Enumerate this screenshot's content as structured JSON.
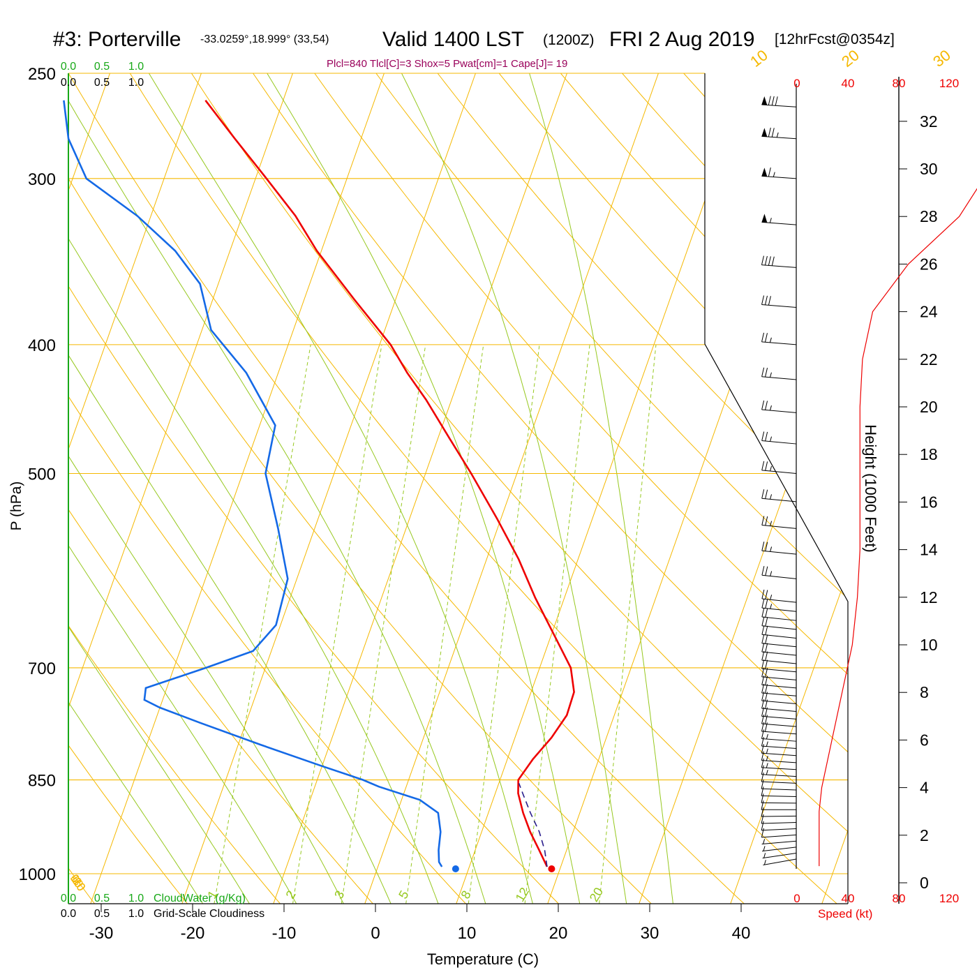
{
  "header": {
    "station": "#3: Porterville",
    "coords": "-33.0259°,18.999° (33,54)",
    "valid": "Valid 1400 LST",
    "zulu": "(1200Z)",
    "date": "FRI 2 Aug 2019",
    "forecast": "[12hrFcst@0354z]"
  },
  "params_line": "Plcl=840 Tlcl[C]=3 Shox=5 Pwat[cm]=1 Cape[J]= 19",
  "colors": {
    "isotherm": "#f5b800",
    "dry_adiabat": "#f5b800",
    "moist_adiabat": "#96c81e",
    "mixing_ratio": "#96c81e",
    "temperature": "#ee0000",
    "dewpoint": "#1469e6",
    "parcel": "#2a1e8c",
    "cloud_axis": "#17a817",
    "params": "#99005a",
    "speed": "#ee0000"
  },
  "cloud": {
    "cw_ticks": [
      "0.0",
      "0.5",
      "1.0"
    ],
    "gs_ticks": [
      "0.0",
      "0.5",
      "1.0"
    ],
    "cw_label": "CloudWater (g/Kg)",
    "gs_label": "Grid-Scale Cloudiness"
  },
  "labels": {
    "ylabel": "P (hPa)",
    "xlabel": "Temperature (C)",
    "height_label": "Height (1000 Feet)",
    "speed_label": "Speed (kt)",
    "dry_adiabat_ticks": [
      "10",
      "0",
      "-10",
      "-20",
      "-30"
    ],
    "isotherm_right_ticks": [
      "0",
      "10",
      "20",
      "30"
    ]
  },
  "chart_data": {
    "type": "skew-t",
    "pressure_levels": [
      250,
      300,
      400,
      500,
      700,
      850,
      1000
    ],
    "x_ticks": [
      -30,
      -20,
      -10,
      0,
      10,
      20,
      30,
      40
    ],
    "height_ticks_kft": [
      0,
      2,
      4,
      6,
      8,
      10,
      12,
      14,
      16,
      18,
      20,
      22,
      24,
      26,
      28,
      30,
      32
    ],
    "speed_ticks": [
      0,
      40,
      80,
      120
    ],
    "mixing_ratio_labels": [
      "1",
      "2",
      "3",
      "5",
      "8",
      "12",
      "20"
    ],
    "temperature_profile": [
      {
        "p": 988,
        "t": 18.5
      },
      {
        "p": 960,
        "t": 17.0
      },
      {
        "p": 930,
        "t": 15.3
      },
      {
        "p": 900,
        "t": 13.8
      },
      {
        "p": 870,
        "t": 12.5
      },
      {
        "p": 850,
        "t": 12.0
      },
      {
        "p": 820,
        "t": 12.8
      },
      {
        "p": 790,
        "t": 14.0
      },
      {
        "p": 760,
        "t": 14.8
      },
      {
        "p": 730,
        "t": 14.7
      },
      {
        "p": 700,
        "t": 13.4
      },
      {
        "p": 660,
        "t": 10.2
      },
      {
        "p": 620,
        "t": 6.8
      },
      {
        "p": 580,
        "t": 3.5
      },
      {
        "p": 540,
        "t": -0.5
      },
      {
        "p": 500,
        "t": -5.0
      },
      {
        "p": 470,
        "t": -8.8
      },
      {
        "p": 440,
        "t": -12.8
      },
      {
        "p": 420,
        "t": -15.9
      },
      {
        "p": 400,
        "t": -18.8
      },
      {
        "p": 370,
        "t": -24.5
      },
      {
        "p": 340,
        "t": -30.5
      },
      {
        "p": 320,
        "t": -34.2
      },
      {
        "p": 300,
        "t": -38.8
      },
      {
        "p": 280,
        "t": -43.8
      },
      {
        "p": 262,
        "t": -48.5
      }
    ],
    "dewpoint_profile": [
      {
        "p": 988,
        "td": 7.0
      },
      {
        "p": 980,
        "td": 6.5
      },
      {
        "p": 960,
        "td": 6.0
      },
      {
        "p": 930,
        "td": 5.5
      },
      {
        "p": 900,
        "td": 4.5
      },
      {
        "p": 880,
        "td": 2.0
      },
      {
        "p": 860,
        "td": -3.0
      },
      {
        "p": 850,
        "td": -5.0
      },
      {
        "p": 830,
        "td": -10.0
      },
      {
        "p": 800,
        "td": -17.5
      },
      {
        "p": 770,
        "td": -25.0
      },
      {
        "p": 750,
        "td": -30.0
      },
      {
        "p": 740,
        "td": -32.0
      },
      {
        "p": 725,
        "td": -32.3
      },
      {
        "p": 700,
        "td": -26.5
      },
      {
        "p": 680,
        "td": -22.0
      },
      {
        "p": 650,
        "td": -20.5
      },
      {
        "p": 600,
        "td": -21.0
      },
      {
        "p": 550,
        "td": -24.0
      },
      {
        "p": 500,
        "td": -27.5
      },
      {
        "p": 460,
        "td": -28.3
      },
      {
        "p": 420,
        "td": -33.5
      },
      {
        "p": 390,
        "td": -39.0
      },
      {
        "p": 360,
        "td": -42.0
      },
      {
        "p": 340,
        "td": -46.0
      },
      {
        "p": 320,
        "td": -51.5
      },
      {
        "p": 300,
        "td": -58.5
      },
      {
        "p": 280,
        "td": -62.0
      },
      {
        "p": 262,
        "td": -64.0
      }
    ],
    "parcel_profile": [
      {
        "p": 988,
        "t": 18.5
      },
      {
        "p": 960,
        "t": 17.6
      },
      {
        "p": 930,
        "t": 16.3
      },
      {
        "p": 900,
        "t": 14.6
      },
      {
        "p": 870,
        "t": 13.0
      },
      {
        "p": 855,
        "t": 12.2
      }
    ],
    "surface": {
      "t": 19.0,
      "td": 8.5
    },
    "speed_profile_kt": [
      {
        "h": 0.7,
        "s": 9
      },
      {
        "h": 2,
        "s": 9
      },
      {
        "h": 3,
        "s": 9
      },
      {
        "h": 4,
        "s": 10
      },
      {
        "h": 5,
        "s": 12
      },
      {
        "h": 6,
        "s": 14
      },
      {
        "h": 8,
        "s": 18
      },
      {
        "h": 10,
        "s": 22
      },
      {
        "h": 12,
        "s": 24
      },
      {
        "h": 14,
        "s": 25
      },
      {
        "h": 16,
        "s": 25
      },
      {
        "h": 18,
        "s": 25
      },
      {
        "h": 20,
        "s": 25
      },
      {
        "h": 22,
        "s": 26
      },
      {
        "h": 24,
        "s": 30
      },
      {
        "h": 26,
        "s": 44
      },
      {
        "h": 28,
        "s": 64
      },
      {
        "h": 30,
        "s": 76
      },
      {
        "h": 32,
        "s": 83
      },
      {
        "h": 33,
        "s": 84
      }
    ],
    "wind_barbs": [
      {
        "p": 975,
        "dir": 240,
        "kt": 8
      },
      {
        "p": 965,
        "dir": 245,
        "kt": 8
      },
      {
        "p": 955,
        "dir": 250,
        "kt": 9
      },
      {
        "p": 945,
        "dir": 255,
        "kt": 9
      },
      {
        "p": 935,
        "dir": 258,
        "kt": 10
      },
      {
        "p": 925,
        "dir": 262,
        "kt": 10
      },
      {
        "p": 915,
        "dir": 265,
        "kt": 11
      },
      {
        "p": 905,
        "dir": 268,
        "kt": 11
      },
      {
        "p": 895,
        "dir": 270,
        "kt": 12
      },
      {
        "p": 885,
        "dir": 272,
        "kt": 12
      },
      {
        "p": 875,
        "dir": 274,
        "kt": 13
      },
      {
        "p": 865,
        "dir": 276,
        "kt": 14
      },
      {
        "p": 855,
        "dir": 278,
        "kt": 14
      },
      {
        "p": 845,
        "dir": 280,
        "kt": 15
      },
      {
        "p": 835,
        "dir": 280,
        "kt": 16
      },
      {
        "p": 825,
        "dir": 281,
        "kt": 17
      },
      {
        "p": 815,
        "dir": 282,
        "kt": 18
      },
      {
        "p": 805,
        "dir": 282,
        "kt": 18
      },
      {
        "p": 795,
        "dir": 283,
        "kt": 19
      },
      {
        "p": 785,
        "dir": 283,
        "kt": 20
      },
      {
        "p": 775,
        "dir": 284,
        "kt": 20
      },
      {
        "p": 765,
        "dir": 284,
        "kt": 21
      },
      {
        "p": 755,
        "dir": 285,
        "kt": 21
      },
      {
        "p": 745,
        "dir": 285,
        "kt": 22
      },
      {
        "p": 735,
        "dir": 285,
        "kt": 22
      },
      {
        "p": 725,
        "dir": 286,
        "kt": 22
      },
      {
        "p": 715,
        "dir": 286,
        "kt": 23
      },
      {
        "p": 705,
        "dir": 286,
        "kt": 23
      },
      {
        "p": 695,
        "dir": 287,
        "kt": 23
      },
      {
        "p": 685,
        "dir": 287,
        "kt": 24
      },
      {
        "p": 675,
        "dir": 287,
        "kt": 24
      },
      {
        "p": 665,
        "dir": 288,
        "kt": 24
      },
      {
        "p": 655,
        "dir": 288,
        "kt": 24
      },
      {
        "p": 645,
        "dir": 288,
        "kt": 24
      },
      {
        "p": 635,
        "dir": 288,
        "kt": 25
      },
      {
        "p": 625,
        "dir": 288,
        "kt": 25
      },
      {
        "p": 600,
        "dir": 288,
        "kt": 25
      },
      {
        "p": 575,
        "dir": 287,
        "kt": 25
      },
      {
        "p": 550,
        "dir": 287,
        "kt": 25
      },
      {
        "p": 525,
        "dir": 286,
        "kt": 25
      },
      {
        "p": 500,
        "dir": 286,
        "kt": 25
      },
      {
        "p": 475,
        "dir": 286,
        "kt": 25
      },
      {
        "p": 450,
        "dir": 285,
        "kt": 25
      },
      {
        "p": 425,
        "dir": 285,
        "kt": 25
      },
      {
        "p": 400,
        "dir": 284,
        "kt": 25
      },
      {
        "p": 375,
        "dir": 284,
        "kt": 30
      },
      {
        "p": 350,
        "dir": 283,
        "kt": 40
      },
      {
        "p": 325,
        "dir": 283,
        "kt": 55
      },
      {
        "p": 300,
        "dir": 282,
        "kt": 65
      },
      {
        "p": 280,
        "dir": 282,
        "kt": 75
      },
      {
        "p": 265,
        "dir": 281,
        "kt": 80
      }
    ]
  }
}
